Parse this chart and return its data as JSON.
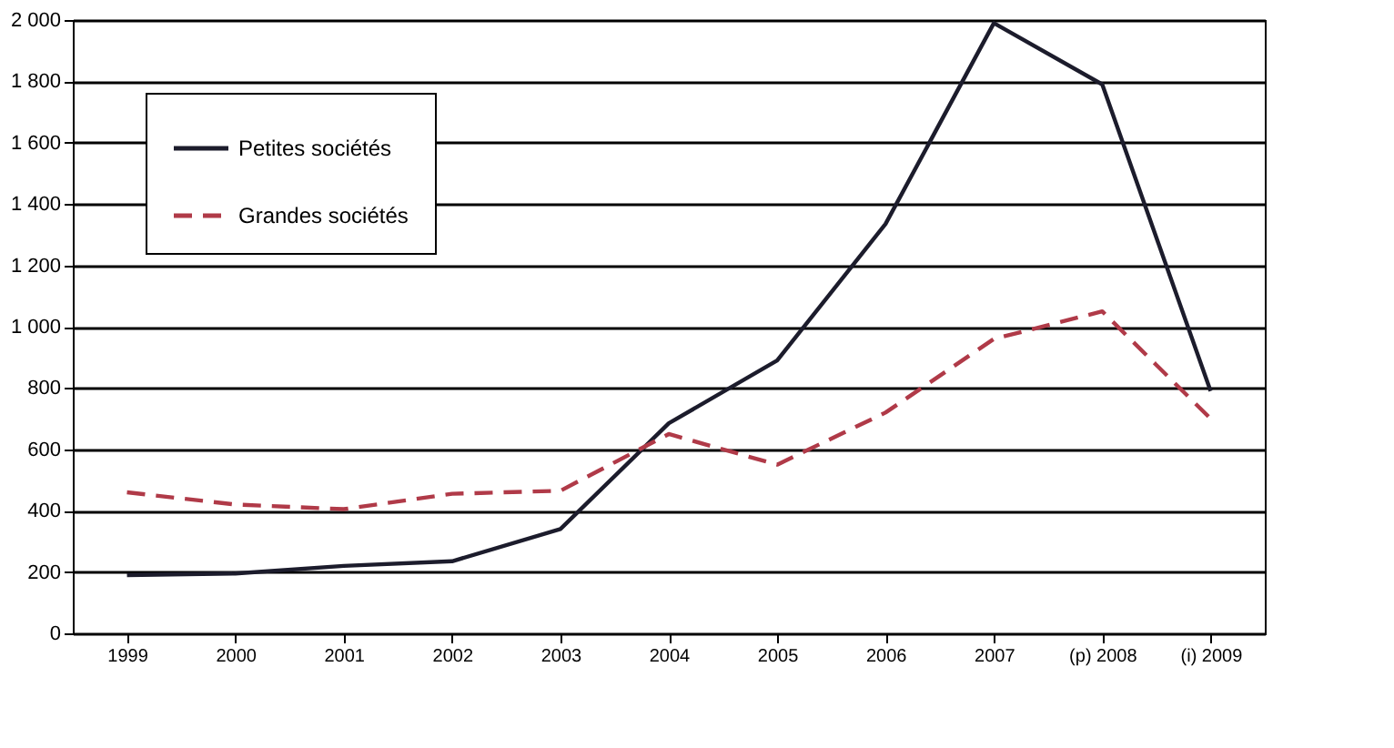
{
  "chart_data": {
    "type": "line",
    "categories": [
      "1999",
      "2000",
      "2001",
      "2002",
      "2003",
      "2004",
      "2005",
      "2006",
      "2007",
      "(p) 2008",
      "(i) 2009"
    ],
    "series": [
      {
        "name": "Petites sociétés",
        "color": "#1c1c2c",
        "line_style": "solid",
        "values": [
          190,
          195,
          220,
          235,
          340,
          685,
          890,
          1335,
          1990,
          1790,
          790
        ]
      },
      {
        "name": "Grandes sociétés",
        "color": "#b03a48",
        "line_style": "dashed",
        "values": [
          460,
          420,
          405,
          455,
          465,
          650,
          550,
          720,
          960,
          1050,
          700
        ]
      }
    ],
    "ylim": [
      0,
      2000
    ],
    "yticks": [
      0,
      200,
      400,
      600,
      800,
      {
        "value": 1000,
        "label": "1 000"
      },
      {
        "value": 1200,
        "label": "1 200"
      },
      {
        "value": 1400,
        "label": "1 400"
      },
      {
        "value": 1600,
        "label": "1 600"
      },
      {
        "value": 1800,
        "label": "1 800"
      },
      {
        "value": 2000,
        "label": "2 000"
      }
    ],
    "grid": "y",
    "legend": "top left",
    "marker": "none"
  }
}
